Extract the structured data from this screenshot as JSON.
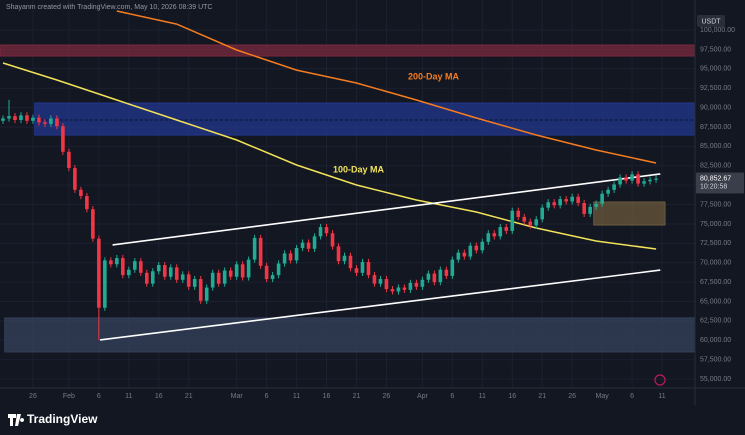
{
  "chart_data": {
    "type": "candlestick",
    "header": "Shayanm created with TradingView.com, May 10, 2026 08:39 UTC",
    "quote": "USDT",
    "brand": "TradingView",
    "up_color": "#22ab94",
    "down_color": "#f23645",
    "grid": true,
    "xlim": [
      20.5,
      136.5
    ],
    "ylim": [
      53850,
      102840
    ],
    "xticks": [
      {
        "value": 26,
        "label": "26"
      },
      {
        "value": 32,
        "label": "Feb"
      },
      {
        "value": 37,
        "label": "6"
      },
      {
        "value": 42,
        "label": "11"
      },
      {
        "value": 47,
        "label": "16"
      },
      {
        "value": 52,
        "label": "21"
      },
      {
        "value": 60,
        "label": "Mar"
      },
      {
        "value": 65,
        "label": "6"
      },
      {
        "value": 70,
        "label": "11"
      },
      {
        "value": 75,
        "label": "16"
      },
      {
        "value": 80,
        "label": "21"
      },
      {
        "value": 85,
        "label": "26"
      },
      {
        "value": 91,
        "label": "Apr"
      },
      {
        "value": 96,
        "label": "6"
      },
      {
        "value": 101,
        "label": "11"
      },
      {
        "value": 106,
        "label": "16"
      },
      {
        "value": 111,
        "label": "21"
      },
      {
        "value": 116,
        "label": "26"
      },
      {
        "value": 121,
        "label": "May"
      },
      {
        "value": 126,
        "label": "6"
      },
      {
        "value": 131,
        "label": "11"
      }
    ],
    "yticks": [
      {
        "value": 55000,
        "label": "55,000.00"
      },
      {
        "value": 57500,
        "label": "57,500.00"
      },
      {
        "value": 60000,
        "label": "60,000.00"
      },
      {
        "value": 62500,
        "label": "62,500.00"
      },
      {
        "value": 65000,
        "label": "65,000.00"
      },
      {
        "value": 67500,
        "label": "67,500.00"
      },
      {
        "value": 70000,
        "label": "70,000.00"
      },
      {
        "value": 72500,
        "label": "72,500.00"
      },
      {
        "value": 75000,
        "label": "75,000.00"
      },
      {
        "value": 77500,
        "label": "77,500.00"
      },
      {
        "value": 80000,
        "label": "80,000.00"
      },
      {
        "value": 82500,
        "label": "82,500.00"
      },
      {
        "value": 85000,
        "label": "85,000.00"
      },
      {
        "value": 87500,
        "label": "87,500.00"
      },
      {
        "value": 90000,
        "label": "90,000.00"
      },
      {
        "value": 92500,
        "label": "92,500.00"
      },
      {
        "value": 95000,
        "label": "95,000.00"
      },
      {
        "value": 97500,
        "label": "97,500.00"
      },
      {
        "value": 100000,
        "label": "100,000.00"
      }
    ],
    "x": [
      21,
      22,
      23,
      24,
      25,
      26,
      27,
      28,
      29,
      30,
      31,
      32,
      33,
      34,
      35,
      36,
      37,
      38,
      39,
      40,
      41,
      42,
      43,
      44,
      45,
      46,
      47,
      48,
      49,
      50,
      51,
      52,
      53,
      54,
      55,
      56,
      57,
      58,
      59,
      60,
      61,
      62,
      63,
      64,
      65,
      66,
      67,
      68,
      69,
      70,
      71,
      72,
      73,
      74,
      75,
      76,
      77,
      78,
      79,
      80,
      81,
      82,
      83,
      84,
      85,
      86,
      87,
      88,
      89,
      90,
      91,
      92,
      93,
      94,
      95,
      96,
      97,
      98,
      99,
      100,
      101,
      102,
      103,
      104,
      105,
      106,
      107,
      108,
      109,
      110,
      111,
      112,
      113,
      114,
      115,
      116,
      117,
      118,
      119,
      120,
      121,
      122,
      123,
      124,
      125,
      126,
      127,
      128,
      129,
      130
    ],
    "open": [
      88300,
      88600,
      88900,
      88400,
      89000,
      88300,
      88700,
      88100,
      87900,
      88600,
      87600,
      84300,
      82200,
      79400,
      78600,
      76900,
      73100,
      64200,
      70300,
      69800,
      70600,
      68400,
      69100,
      70200,
      68700,
      67300,
      68900,
      69700,
      68200,
      69400,
      67800,
      68500,
      66900,
      67900,
      65100,
      66800,
      68700,
      67300,
      69000,
      68200,
      69800,
      68100,
      70400,
      73200,
      69600,
      67900,
      68400,
      69900,
      71200,
      70300,
      71900,
      72600,
      71800,
      73400,
      74600,
      73800,
      72100,
      70200,
      70900,
      69300,
      68700,
      70100,
      68400,
      67300,
      67900,
      66600,
      66300,
      66800,
      66500,
      67400,
      66900,
      67800,
      68600,
      67500,
      69100,
      68300,
      70400,
      71300,
      70800,
      72200,
      71600,
      72700,
      73800,
      73400,
      74600,
      74100,
      76700,
      75900,
      75300,
      74800,
      75600,
      77100,
      77800,
      77400,
      78200,
      77900,
      78500,
      77700,
      76300,
      77200,
      77600,
      78900,
      79400,
      80100,
      81000,
      80600,
      81400,
      80200,
      80500,
      80700
    ],
    "high": [
      89000,
      91000,
      89300,
      89400,
      89400,
      89100,
      89100,
      88500,
      89000,
      89000,
      88000,
      84700,
      82600,
      79800,
      79000,
      77300,
      73500,
      70700,
      70700,
      71000,
      71000,
      69500,
      70600,
      70600,
      69100,
      69300,
      70100,
      70100,
      69800,
      69800,
      68900,
      68900,
      68300,
      68300,
      67200,
      69100,
      69100,
      69400,
      69400,
      70200,
      70200,
      70800,
      73600,
      73600,
      70000,
      68800,
      70300,
      71600,
      71600,
      72300,
      73000,
      73000,
      73800,
      75000,
      75000,
      74200,
      72500,
      71300,
      71300,
      69700,
      70500,
      70500,
      68800,
      68300,
      68300,
      67000,
      67200,
      67200,
      67800,
      67800,
      68200,
      69000,
      69000,
      69500,
      69500,
      70800,
      71700,
      71700,
      72600,
      72600,
      73100,
      74200,
      74200,
      75000,
      75000,
      77100,
      77100,
      76300,
      75700,
      76000,
      77500,
      78200,
      78200,
      78600,
      78600,
      78900,
      78900,
      78100,
      77600,
      78000,
      79300,
      79800,
      80500,
      81400,
      81400,
      81800,
      81800,
      80900,
      81100,
      81250
    ],
    "low": [
      87900,
      88200,
      88000,
      88000,
      87900,
      87900,
      87700,
      87500,
      87500,
      87200,
      83900,
      81800,
      79000,
      78200,
      76500,
      72700,
      60000,
      63800,
      69400,
      69400,
      68000,
      68000,
      68700,
      68300,
      66900,
      66900,
      68500,
      67800,
      67800,
      67400,
      67400,
      66500,
      66500,
      64700,
      64700,
      66400,
      66900,
      66900,
      67800,
      67800,
      67700,
      67700,
      70000,
      69200,
      67500,
      67500,
      68000,
      69500,
      69900,
      69900,
      71500,
      71400,
      71400,
      73000,
      73400,
      71700,
      69800,
      69800,
      68900,
      68300,
      68300,
      68000,
      66900,
      66900,
      66200,
      65900,
      65900,
      66100,
      66100,
      66500,
      66500,
      67400,
      67100,
      67100,
      67900,
      67900,
      70000,
      70400,
      70400,
      71200,
      71200,
      72300,
      73000,
      73000,
      73700,
      73700,
      75500,
      74900,
      74400,
      74400,
      75200,
      76700,
      77000,
      77000,
      77500,
      77500,
      77300,
      75900,
      75900,
      76800,
      77200,
      78500,
      79000,
      79700,
      80200,
      80200,
      79800,
      79800,
      80100,
      80300
    ],
    "close": [
      88600,
      88900,
      88400,
      89000,
      88300,
      88700,
      88100,
      87900,
      88600,
      87600,
      84300,
      82200,
      79400,
      78600,
      76900,
      73100,
      64200,
      70300,
      69800,
      70600,
      68400,
      69100,
      70200,
      68700,
      67300,
      68900,
      69700,
      68200,
      69400,
      67800,
      68500,
      66900,
      67900,
      65100,
      66800,
      68700,
      67300,
      69000,
      68200,
      69800,
      68100,
      70400,
      73200,
      69600,
      67900,
      68400,
      69900,
      71200,
      70300,
      71900,
      72600,
      71800,
      73400,
      74600,
      73800,
      72100,
      70200,
      70900,
      69300,
      68700,
      70100,
      68400,
      67300,
      67900,
      66600,
      66300,
      66800,
      66500,
      67400,
      66900,
      67800,
      68600,
      67500,
      69100,
      68300,
      70400,
      71300,
      70800,
      72200,
      71600,
      72700,
      73800,
      73400,
      74600,
      74100,
      76700,
      75900,
      75300,
      74800,
      75600,
      77100,
      77800,
      77400,
      78200,
      77900,
      78500,
      77700,
      76300,
      77200,
      77600,
      78900,
      79400,
      80100,
      81000,
      80600,
      81400,
      80200,
      80500,
      80700,
      80850
    ],
    "moving_averages": [
      {
        "name": "200-Day MA",
        "color": "#f57c1f",
        "x": [
          40,
          50,
          60,
          70,
          80,
          90,
          100,
          110,
          120,
          130
        ],
        "values": [
          102450,
          100770,
          97420,
          94840,
          93170,
          90980,
          88660,
          86470,
          84530,
          82860
        ]
      },
      {
        "name": "100-Day MA",
        "color": "#f2e35a",
        "x": [
          21,
          30,
          40,
          50,
          60,
          70,
          80,
          90,
          100,
          110,
          120,
          130
        ],
        "values": [
          95750,
          93560,
          90980,
          88400,
          85820,
          82600,
          80020,
          78090,
          76540,
          74480,
          72800,
          71770
        ]
      }
    ],
    "trendlines": [
      {
        "color": "#ffffff",
        "x": [
          39.3,
          130.7
        ],
        "values": [
          72300,
          81450
        ]
      },
      {
        "color": "#ffffff",
        "x": [
          37.2,
          130.7
        ],
        "values": [
          60050,
          69050
        ]
      }
    ],
    "zones": [
      {
        "color": "#7a2a3c",
        "x": [
          20.5,
          136.5
        ],
        "y": [
          96650,
          98070
        ]
      },
      {
        "color": "#23378f",
        "x": [
          26.3,
          136.5
        ],
        "y": [
          86460,
          90590
        ],
        "mid": 88400
      },
      {
        "color": "#35415c",
        "x": [
          21.3,
          136.5
        ],
        "y": [
          58500,
          62880
        ]
      },
      {
        "color": "#6b5a3c",
        "x": [
          119.6,
          131.5
        ],
        "y": [
          74860,
          77830
        ]
      }
    ],
    "last_price": {
      "value": 80852.67,
      "label": "80,852.67"
    },
    "countdown": "10:20:58"
  }
}
